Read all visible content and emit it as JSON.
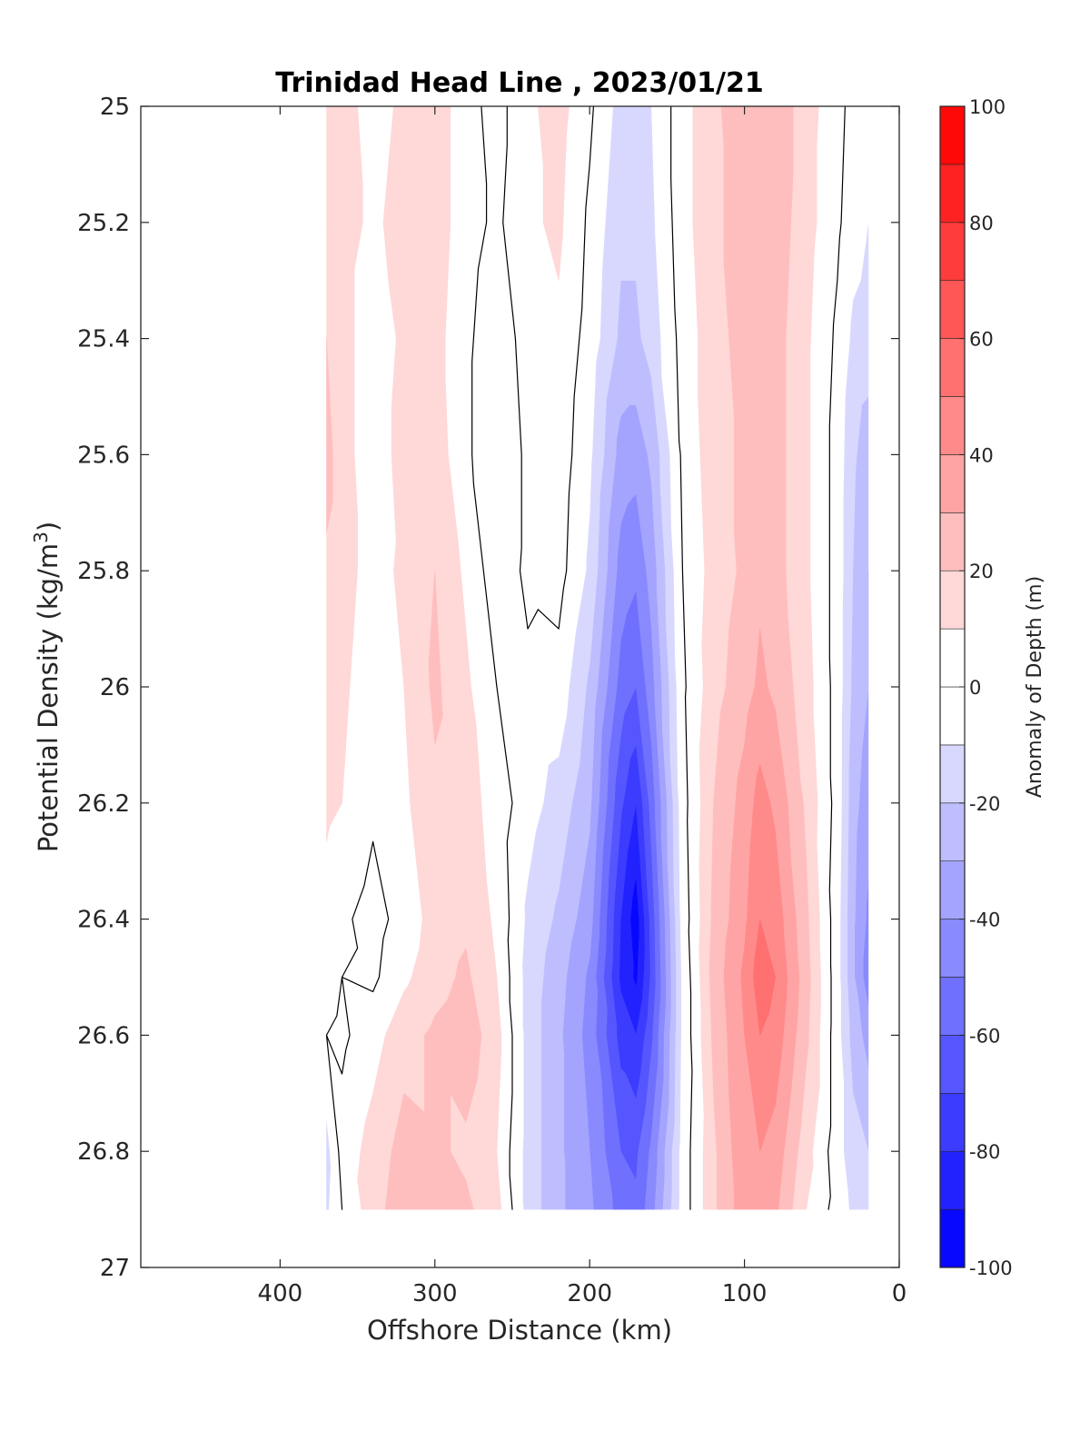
{
  "chart_data": {
    "type": "heatmap",
    "title": "Trinidad Head Line , 2023/01/21",
    "xlabel": "Offshore Distance (km)",
    "ylabel": "Potential Density (kg/m",
    "ylabel_sup": "3",
    "ylabel_close": ")",
    "colorbar_label": "Anomaly of Depth (m)",
    "xlim": [
      490,
      0
    ],
    "ylim": [
      25,
      27
    ],
    "y_reversed": true,
    "x_reversed": true,
    "xticks": [
      400,
      300,
      200,
      100,
      0
    ],
    "xtick_labels": [
      "400",
      "300",
      "200",
      "100",
      "0"
    ],
    "yticks": [
      25,
      25.2,
      25.4,
      25.6,
      25.8,
      26,
      26.2,
      26.4,
      26.6,
      26.8,
      27
    ],
    "ytick_labels": [
      "25",
      "25.2",
      "25.4",
      "25.6",
      "25.8",
      "26",
      "26.2",
      "26.4",
      "26.6",
      "26.8",
      "27"
    ],
    "clim": [
      -100,
      100
    ],
    "colorbar_ticks": [
      100,
      80,
      60,
      40,
      20,
      0,
      -20,
      -40,
      -60,
      -80,
      -100
    ],
    "colorbar_tick_labels": [
      "100",
      "80",
      "60",
      "40",
      "20",
      "0",
      "-20",
      "-40",
      "-60",
      "-80",
      "-100"
    ],
    "contour_levels": [
      -100,
      -90,
      -80,
      -70,
      -60,
      -50,
      -40,
      -30,
      -20,
      -10,
      0,
      10,
      20,
      30,
      40,
      50,
      60,
      70,
      80,
      90,
      100
    ],
    "zero_contour": true,
    "x": [
      370,
      360,
      340,
      320,
      300,
      280,
      260,
      240,
      220,
      200,
      180,
      170,
      160,
      140,
      120,
      100,
      90,
      80,
      60,
      40,
      30,
      20
    ],
    "y": [
      25,
      25.2,
      25.4,
      25.6,
      25.8,
      26,
      26.2,
      26.4,
      26.5,
      26.6,
      26.8,
      26.9
    ],
    "z": [
      [
        10,
        14,
        6,
        12,
        16,
        4,
        -4,
        8,
        14,
        2,
        -14,
        -16,
        -10,
        6,
        18,
        26,
        30,
        28,
        14,
        4,
        -4,
        -8
      ],
      [
        12,
        14,
        8,
        14,
        16,
        4,
        -2,
        8,
        12,
        -2,
        -18,
        -18,
        -12,
        6,
        18,
        24,
        28,
        26,
        14,
        2,
        -6,
        -10
      ],
      [
        20,
        14,
        4,
        12,
        14,
        2,
        -6,
        4,
        8,
        -4,
        -22,
        -22,
        -16,
        4,
        16,
        24,
        26,
        24,
        12,
        -2,
        -12,
        -14
      ],
      [
        24,
        14,
        4,
        14,
        16,
        2,
        -8,
        2,
        6,
        -8,
        -34,
        -36,
        -28,
        2,
        16,
        22,
        26,
        24,
        12,
        -4,
        -18,
        -26
      ],
      [
        18,
        14,
        6,
        12,
        20,
        8,
        -6,
        2,
        4,
        -12,
        -44,
        -48,
        -36,
        0,
        14,
        22,
        28,
        24,
        12,
        -4,
        -20,
        -30
      ],
      [
        14,
        12,
        4,
        10,
        22,
        12,
        0,
        -2,
        -4,
        -22,
        -54,
        -60,
        -44,
        -2,
        16,
        26,
        32,
        28,
        14,
        -4,
        -22,
        -30
      ],
      [
        12,
        10,
        2,
        8,
        18,
        14,
        6,
        -6,
        -14,
        -28,
        -68,
        -80,
        -56,
        -4,
        20,
        34,
        44,
        38,
        18,
        -4,
        -26,
        -36
      ],
      [
        6,
        2,
        -4,
        4,
        14,
        18,
        8,
        -12,
        -22,
        -36,
        -80,
        -96,
        -66,
        -6,
        22,
        38,
        50,
        46,
        22,
        -6,
        -28,
        -42
      ],
      [
        4,
        0,
        -2,
        8,
        16,
        22,
        10,
        -14,
        -26,
        -42,
        -82,
        -92,
        -68,
        -8,
        24,
        42,
        56,
        50,
        24,
        -6,
        -28,
        -46
      ],
      [
        0,
        -2,
        6,
        16,
        22,
        26,
        14,
        -14,
        -28,
        -44,
        -74,
        -80,
        -62,
        -8,
        22,
        40,
        50,
        46,
        22,
        -6,
        -24,
        -34
      ],
      [
        -14,
        4,
        14,
        24,
        22,
        18,
        10,
        -14,
        -28,
        -40,
        -60,
        -62,
        -48,
        -6,
        18,
        38,
        40,
        36,
        14,
        -6,
        -16,
        -20
      ],
      [
        -12,
        0,
        16,
        26,
        24,
        22,
        14,
        -14,
        -28,
        -38,
        -54,
        -58,
        -44,
        -6,
        18,
        36,
        30,
        32,
        10,
        -4,
        -12,
        -16
      ]
    ]
  }
}
